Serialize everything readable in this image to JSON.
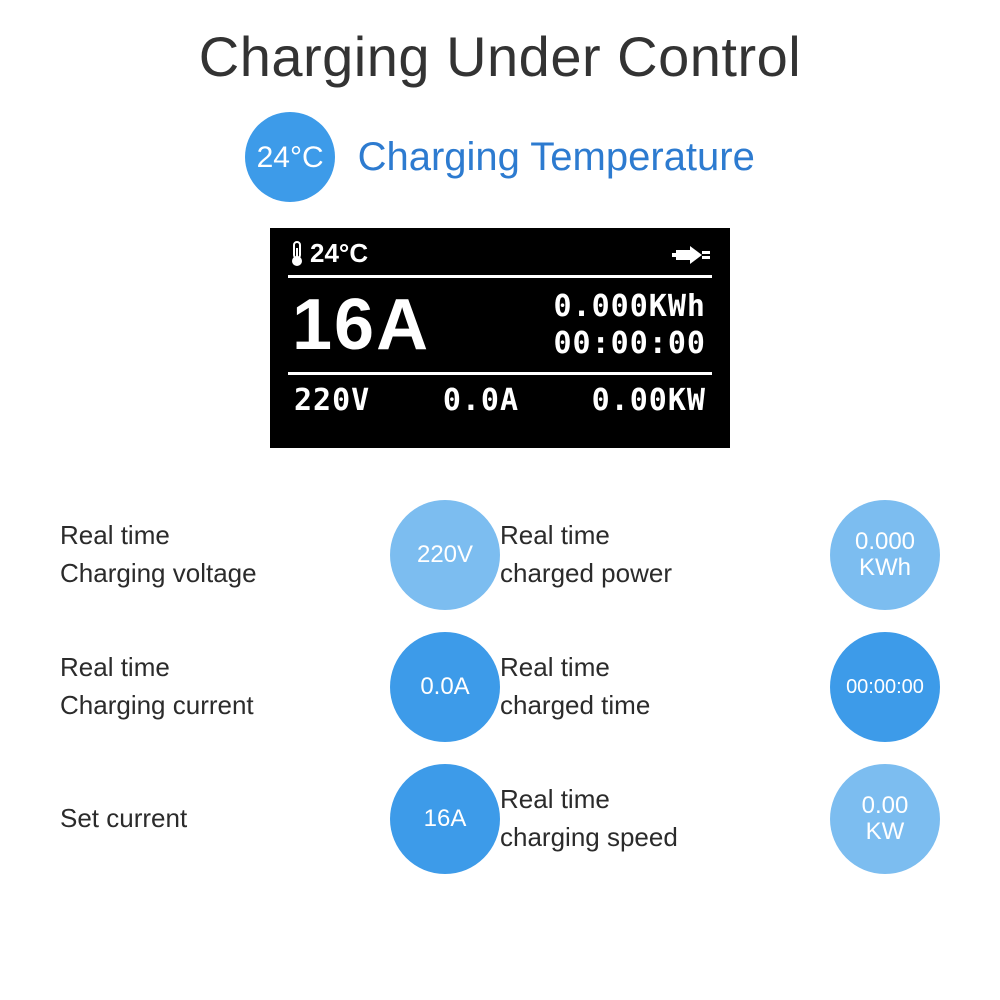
{
  "title": "Charging Under Control",
  "colors": {
    "circle_primary": "#3d9be9",
    "circle_light": "#7cbdf0",
    "temp_label": "#2d7bd0",
    "title_text": "#333333",
    "body_text": "#2b2b2b",
    "lcd_bg": "#000000",
    "lcd_fg": "#ffffff"
  },
  "font_sizes_pt": {
    "title": 42,
    "temp_label": 30,
    "body": 20,
    "lcd_big": 54,
    "lcd_small": 22
  },
  "temperature": {
    "value": "24°C",
    "label": "Charging Temperature"
  },
  "lcd": {
    "temp": "24°C",
    "set_current": "16A",
    "energy": "0.000KWh",
    "time": "00:00:00",
    "voltage": "220V",
    "current": "0.0A",
    "power": "0.00KW"
  },
  "stats": [
    {
      "label_l1": "Real time",
      "label_l2": "Charging voltage",
      "value": "220V",
      "color": "circle_light"
    },
    {
      "label_l1": "Real time",
      "label_l2": "charged power",
      "value": "0.000",
      "value2": "KWh",
      "color": "circle_light"
    },
    {
      "label_l1": "Real time",
      "label_l2": "Charging current",
      "value": "0.0A",
      "color": "circle_primary"
    },
    {
      "label_l1": "Real time",
      "label_l2": "charged time",
      "value": "00:00:00",
      "color": "circle_primary",
      "small": true
    },
    {
      "label_l1": "Set current",
      "label_l2": "",
      "value": "16A",
      "color": "circle_primary"
    },
    {
      "label_l1": "Real time",
      "label_l2": "charging speed",
      "value": "0.00",
      "value2": "KW",
      "color": "circle_light"
    }
  ]
}
